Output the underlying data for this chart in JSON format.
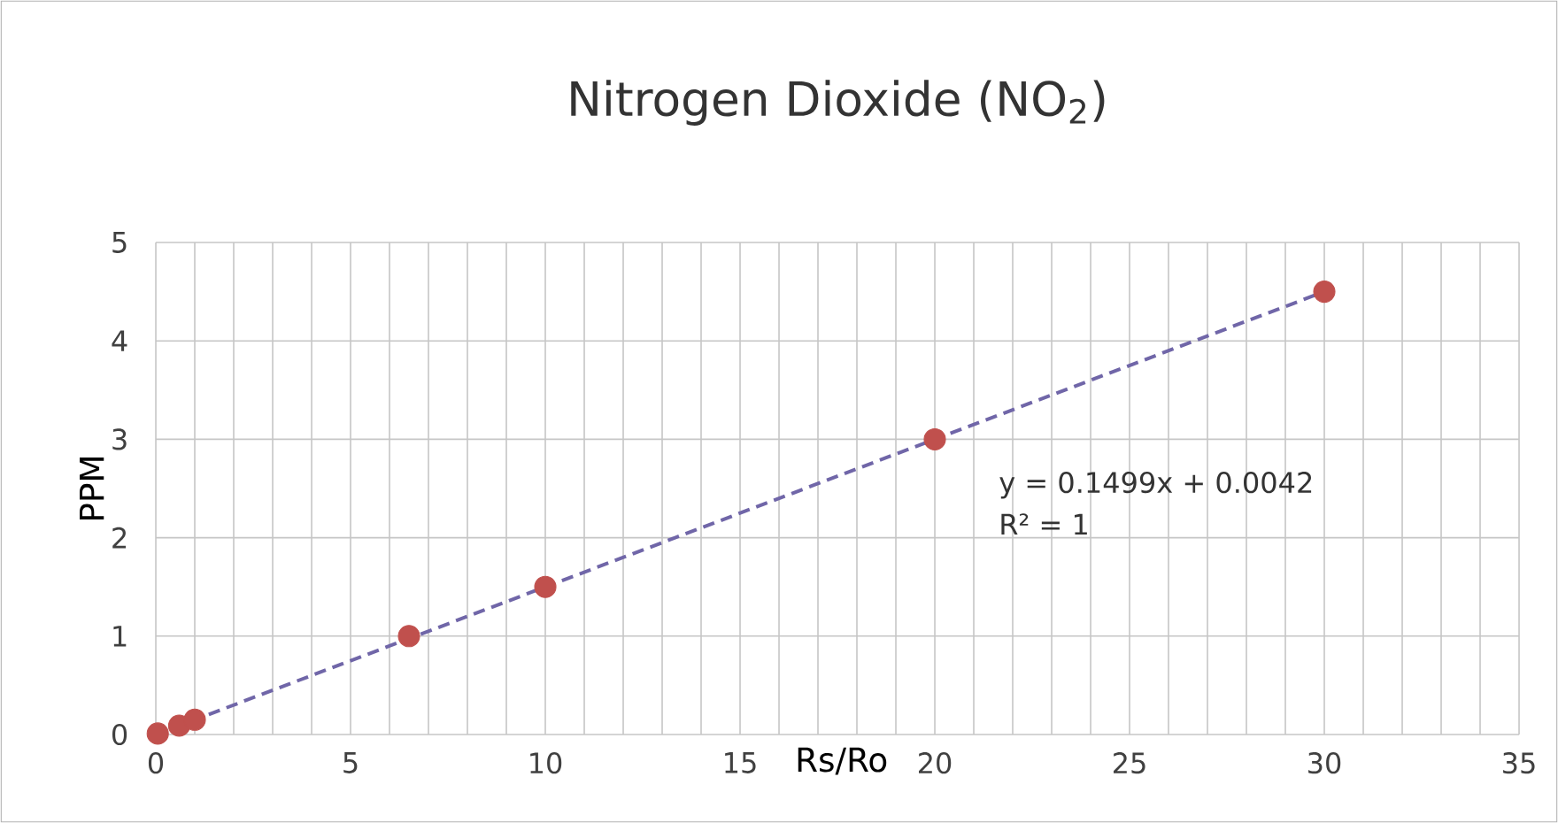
{
  "chart_data": {
    "type": "scatter",
    "title": "Nitrogen Dioxide (NO$_{2}$)",
    "xlabel": "Rs/Ro",
    "ylabel": "PPM",
    "xlim": [
      0,
      35
    ],
    "ylim": [
      0,
      5
    ],
    "xticks": [
      0,
      5,
      10,
      15,
      20,
      25,
      30,
      35
    ],
    "yticks": [
      0,
      1,
      2,
      3,
      4,
      5
    ],
    "grid": true,
    "series": [
      {
        "color": "#c0504d",
        "marker": "circle",
        "x": [
          0.05,
          0.6,
          1,
          6.5,
          10,
          20,
          30
        ],
        "values": [
          0.01,
          0.09,
          0.15,
          1,
          1.5,
          3,
          4.5
        ]
      },
      {
        "type": "line",
        "color": "#7066a8",
        "line_style": "dashed",
        "marker": "none",
        "x": [
          0,
          30
        ],
        "values": [
          0,
          4.5
        ]
      }
    ],
    "annotations": [
      "y = 0.1499x + 0.0042",
      "R² = 1"
    ]
  }
}
